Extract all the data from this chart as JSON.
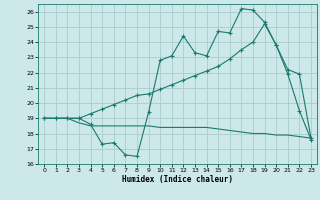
{
  "xlabel": "Humidex (Indice chaleur)",
  "background_color": "#cce8e8",
  "grid_color": "#aacccc",
  "line_color": "#1a7a6e",
  "xlim": [
    -0.5,
    23.5
  ],
  "ylim": [
    16,
    26.5
  ],
  "xticks": [
    0,
    1,
    2,
    3,
    4,
    5,
    6,
    7,
    8,
    9,
    10,
    11,
    12,
    13,
    14,
    15,
    16,
    17,
    18,
    19,
    20,
    21,
    22,
    23
  ],
  "yticks": [
    16,
    17,
    18,
    19,
    20,
    21,
    22,
    23,
    24,
    25,
    26
  ],
  "series1_x": [
    0,
    1,
    2,
    3,
    4,
    5,
    6,
    7,
    8,
    9,
    10,
    11,
    12,
    13,
    14,
    15,
    16,
    17,
    18,
    19,
    20,
    21,
    22,
    23
  ],
  "series1_y": [
    19.0,
    19.0,
    19.0,
    19.0,
    18.6,
    17.3,
    17.4,
    16.6,
    16.5,
    19.4,
    22.8,
    23.1,
    24.4,
    23.3,
    23.1,
    24.7,
    24.6,
    26.2,
    26.1,
    25.3,
    23.8,
    21.9,
    19.5,
    17.6
  ],
  "series2_x": [
    0,
    1,
    2,
    3,
    4,
    5,
    6,
    7,
    8,
    9,
    10,
    11,
    12,
    13,
    14,
    15,
    16,
    17,
    18,
    19,
    20,
    21,
    22,
    23
  ],
  "series2_y": [
    19.0,
    19.0,
    19.0,
    18.7,
    18.5,
    18.5,
    18.5,
    18.5,
    18.5,
    18.5,
    18.4,
    18.4,
    18.4,
    18.4,
    18.4,
    18.3,
    18.2,
    18.1,
    18.0,
    18.0,
    17.9,
    17.9,
    17.8,
    17.7
  ],
  "series3_x": [
    0,
    1,
    2,
    3,
    4,
    5,
    6,
    7,
    8,
    9,
    10,
    11,
    12,
    13,
    14,
    15,
    16,
    17,
    18,
    19,
    20,
    21,
    22,
    23
  ],
  "series3_y": [
    19.0,
    19.0,
    19.0,
    19.0,
    19.3,
    19.6,
    19.9,
    20.2,
    20.5,
    20.6,
    20.9,
    21.2,
    21.5,
    21.8,
    22.1,
    22.4,
    22.9,
    23.5,
    24.0,
    25.2,
    23.8,
    22.2,
    21.9,
    17.7
  ]
}
